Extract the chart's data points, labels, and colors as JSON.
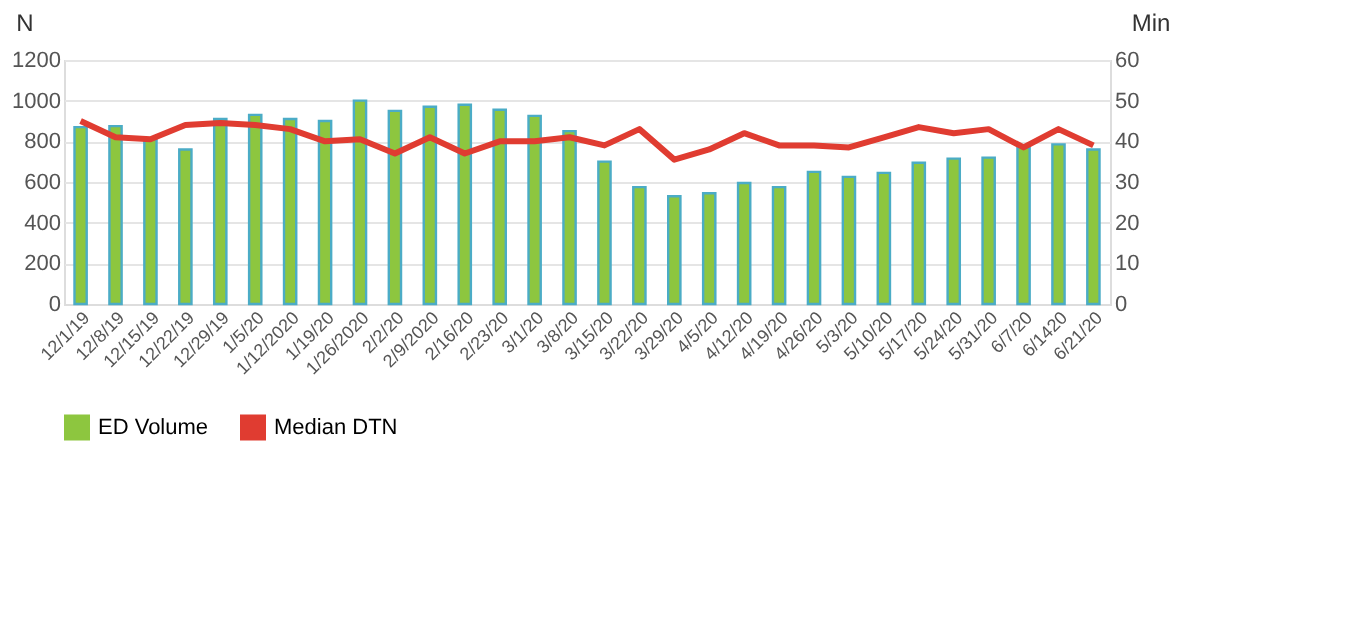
{
  "chart_data": {
    "type": "bar",
    "ylabel": "N",
    "y2label": "Min",
    "categories": [
      "12/1/19",
      "12/8/19",
      "12/15/19",
      "12/22/19",
      "12/29/19",
      "1/5/20",
      "1/12/2020",
      "1/19/20",
      "1/26/2020",
      "2/2/20",
      "2/9/2020",
      "2/16/20",
      "2/23/20",
      "3/1/20",
      "3/8/20",
      "3/15/20",
      "3/22/20",
      "3/29/20",
      "4/5/20",
      "4/12/20",
      "4/19/20",
      "4/26/20",
      "5/3/20",
      "5/10/20",
      "5/17/20",
      "5/24/20",
      "5/31/20",
      "6/7/20",
      "6/1420",
      "6/21/20"
    ],
    "series": [
      {
        "name": "ED Volume",
        "color": "#8dc63f",
        "values": [
          870,
          875,
          810,
          760,
          910,
          930,
          910,
          900,
          1000,
          950,
          970,
          980,
          955,
          925,
          850,
          700,
          575,
          530,
          545,
          595,
          575,
          650,
          625,
          645,
          695,
          715,
          720,
          770,
          785,
          760
        ]
      },
      {
        "name": "Median DTN",
        "type": "line",
        "axis": "y2",
        "color": "#e03c31",
        "values": [
          45,
          41,
          40.5,
          44,
          44.5,
          44,
          43,
          40,
          40.5,
          37,
          41,
          37,
          40,
          40,
          41,
          39,
          43,
          35.5,
          38,
          42,
          39,
          39,
          38.5,
          41,
          43.5,
          42,
          43,
          38.5,
          43,
          39
        ]
      }
    ],
    "ylim": [
      0,
      1200
    ],
    "yticks": [
      0,
      200,
      400,
      600,
      800,
      1000,
      1200
    ],
    "y2lim": [
      0,
      60
    ],
    "y2ticks": [
      0,
      10,
      20,
      30,
      40,
      50,
      60
    ],
    "grid": "y",
    "legend": "bottom",
    "marker": "none",
    "line_style": "solid"
  }
}
